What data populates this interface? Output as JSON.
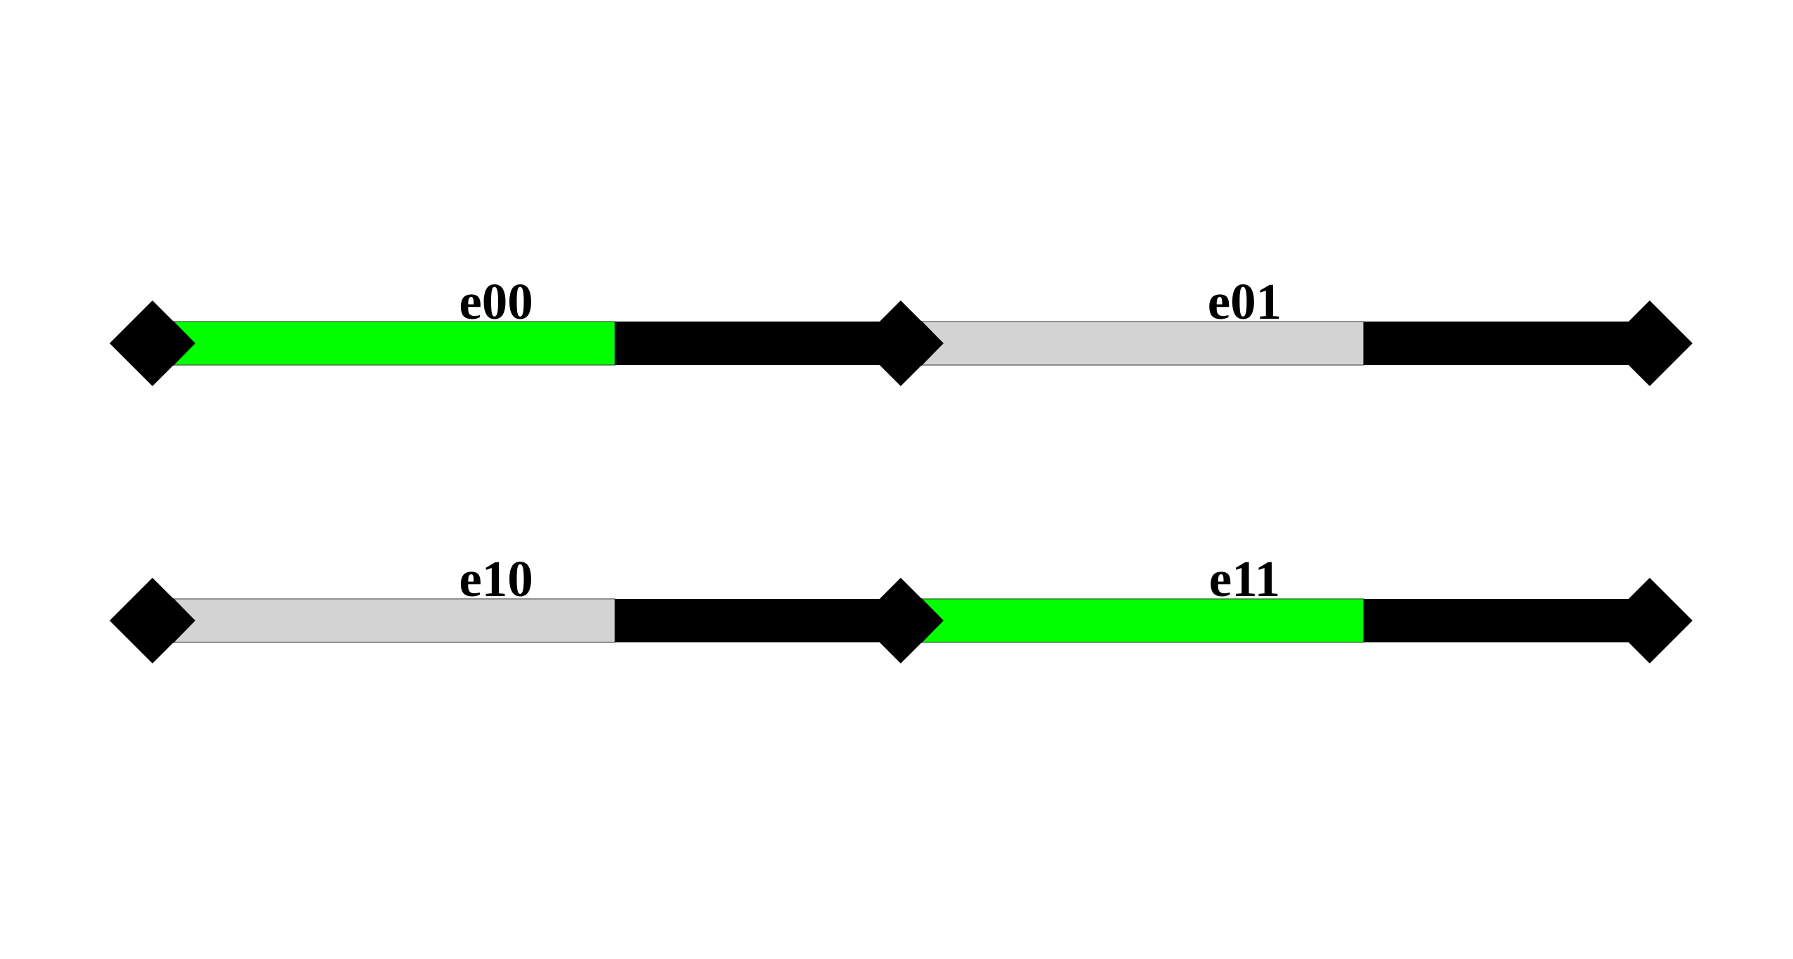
{
  "colors": {
    "background": "#ffffff",
    "track": "#000000",
    "active": "#00ff00",
    "inactive": "#d3d3d3",
    "node": "#000000",
    "outline": "#333333"
  },
  "edges": [
    {
      "id": "e00",
      "label": "e00",
      "row": 0,
      "col": 0,
      "state": "active",
      "fill_fraction": 0.618
    },
    {
      "id": "e01",
      "label": "e01",
      "row": 0,
      "col": 1,
      "state": "inactive",
      "fill_fraction": 0.618
    },
    {
      "id": "e10",
      "label": "e10",
      "row": 1,
      "col": 0,
      "state": "inactive",
      "fill_fraction": 0.618
    },
    {
      "id": "e11",
      "label": "e11",
      "row": 1,
      "col": 1,
      "state": "active",
      "fill_fraction": 0.618
    }
  ]
}
